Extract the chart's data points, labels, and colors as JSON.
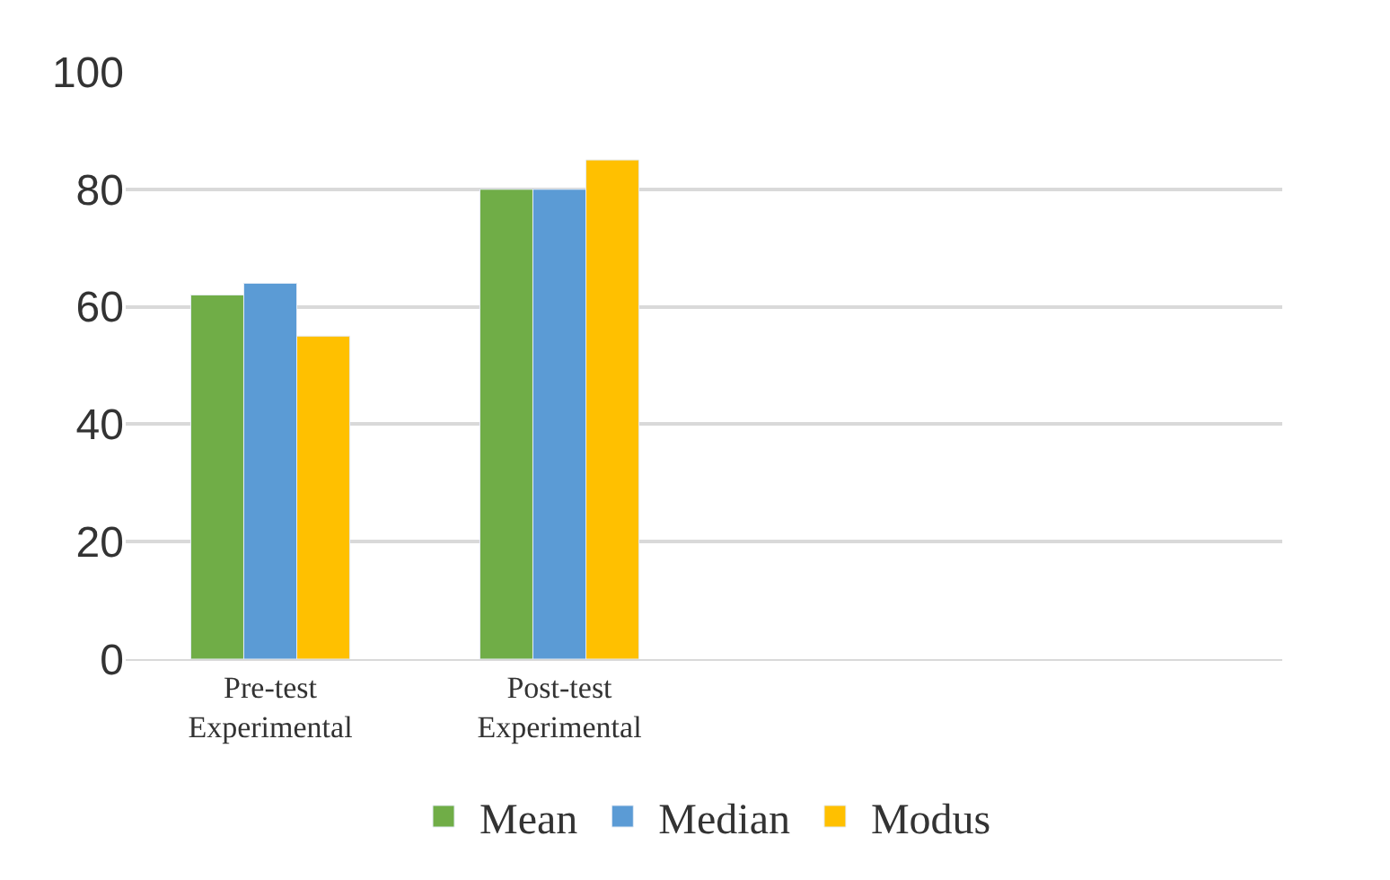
{
  "chart_data": {
    "type": "bar",
    "categories": [
      "Pre-test Experimental",
      "Post-test Experimental",
      null,
      null
    ],
    "series": [
      {
        "name": "Mean",
        "color": "#70ad47",
        "values": [
          62,
          80,
          null,
          null
        ]
      },
      {
        "name": "Median",
        "color": "#5b9bd5",
        "values": [
          64,
          80,
          null,
          null
        ]
      },
      {
        "name": "Modus",
        "color": "#ffc000",
        "values": [
          55,
          85,
          null,
          null
        ]
      }
    ],
    "ylim": [
      0,
      100
    ],
    "yticks": [
      0,
      20,
      40,
      60,
      80,
      100
    ],
    "grid": "y",
    "legend": "bottom"
  }
}
